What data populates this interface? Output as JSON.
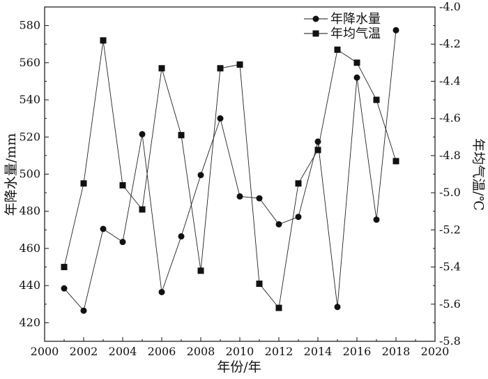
{
  "chart_data": {
    "type": "line",
    "xlabel": "年份/年",
    "ylabel_left": "年降水量/mm",
    "ylabel_right": "年均气温/℃",
    "xlim": [
      2000,
      2020
    ],
    "ylim_left": [
      410,
      590
    ],
    "ylim_right": [
      -5.8,
      -4.0
    ],
    "x_ticks": [
      2000,
      2002,
      2004,
      2006,
      2008,
      2010,
      2012,
      2014,
      2016,
      2018,
      2020
    ],
    "y_left_ticks": [
      420,
      440,
      460,
      480,
      500,
      520,
      540,
      560,
      580
    ],
    "y_right_ticks": [
      -5.8,
      -5.6,
      -5.4,
      -5.2,
      -5.0,
      -4.8,
      -4.6,
      -4.4,
      -4.2,
      -4.0
    ],
    "x_tick_labels": [
      "2000",
      "2002",
      "2004",
      "2006",
      "2008",
      "2010",
      "2012",
      "2014",
      "2016",
      "2018",
      "2020"
    ],
    "y_left_tick_labels": [
      "420",
      "440",
      "460",
      "480",
      "500",
      "520",
      "540",
      "560",
      "580"
    ],
    "y_right_tick_labels": [
      "-5.8",
      "-5.6",
      "-5.4",
      "-5.2",
      "-5.0",
      "-4.8",
      "-4.6",
      "-4.4",
      "-4.2",
      "-4.0"
    ],
    "legend_position": "top-right",
    "grid": false,
    "x": [
      2001,
      2002,
      2003,
      2004,
      2005,
      2006,
      2007,
      2008,
      2009,
      2010,
      2011,
      2012,
      2013,
      2014,
      2015,
      2016,
      2017,
      2018
    ],
    "series": [
      {
        "name": "年降水量",
        "axis": "left",
        "marker": "circle",
        "values": [
          438.5,
          426.5,
          470.5,
          463.5,
          521.5,
          436.5,
          466.5,
          499.5,
          530.0,
          488.0,
          487.0,
          473.0,
          477.0,
          517.5,
          428.5,
          552.0,
          475.5,
          577.5
        ]
      },
      {
        "name": "年均气温",
        "axis": "right",
        "marker": "square",
        "values": [
          -5.4,
          -4.95,
          -4.18,
          -4.96,
          -5.09,
          -4.33,
          -4.69,
          -5.42,
          -4.33,
          -4.31,
          -5.49,
          -5.62,
          -4.95,
          -4.77,
          -4.23,
          -4.3,
          -4.5,
          -4.83
        ]
      }
    ]
  }
}
